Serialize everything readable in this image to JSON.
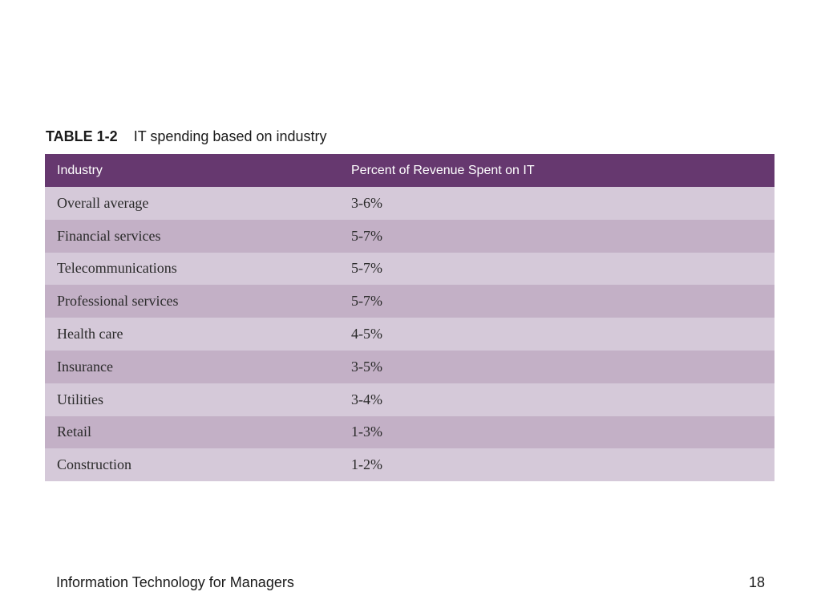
{
  "caption": {
    "table_number": "TABLE 1-2",
    "title": "IT spending based on industry"
  },
  "table": {
    "headers": [
      "Industry",
      "Percent of Revenue Spent on IT"
    ],
    "rows": [
      [
        "Overall average",
        "3-6%"
      ],
      [
        "Financial services",
        "5-7%"
      ],
      [
        "Telecommunications",
        "5-7%"
      ],
      [
        "Professional services",
        "5-7%"
      ],
      [
        "Health care",
        "4-5%"
      ],
      [
        "Insurance",
        "3-5%"
      ],
      [
        "Utilities",
        "3-4%"
      ],
      [
        "Retail",
        "1-3%"
      ],
      [
        "Construction",
        "1-2%"
      ]
    ]
  },
  "footer": {
    "left": "Information Technology for Managers",
    "page_number": "18"
  },
  "colors": {
    "header_bg": "#66386f",
    "row_light": "#d5c9d9",
    "row_dark": "#c3b0c6"
  }
}
